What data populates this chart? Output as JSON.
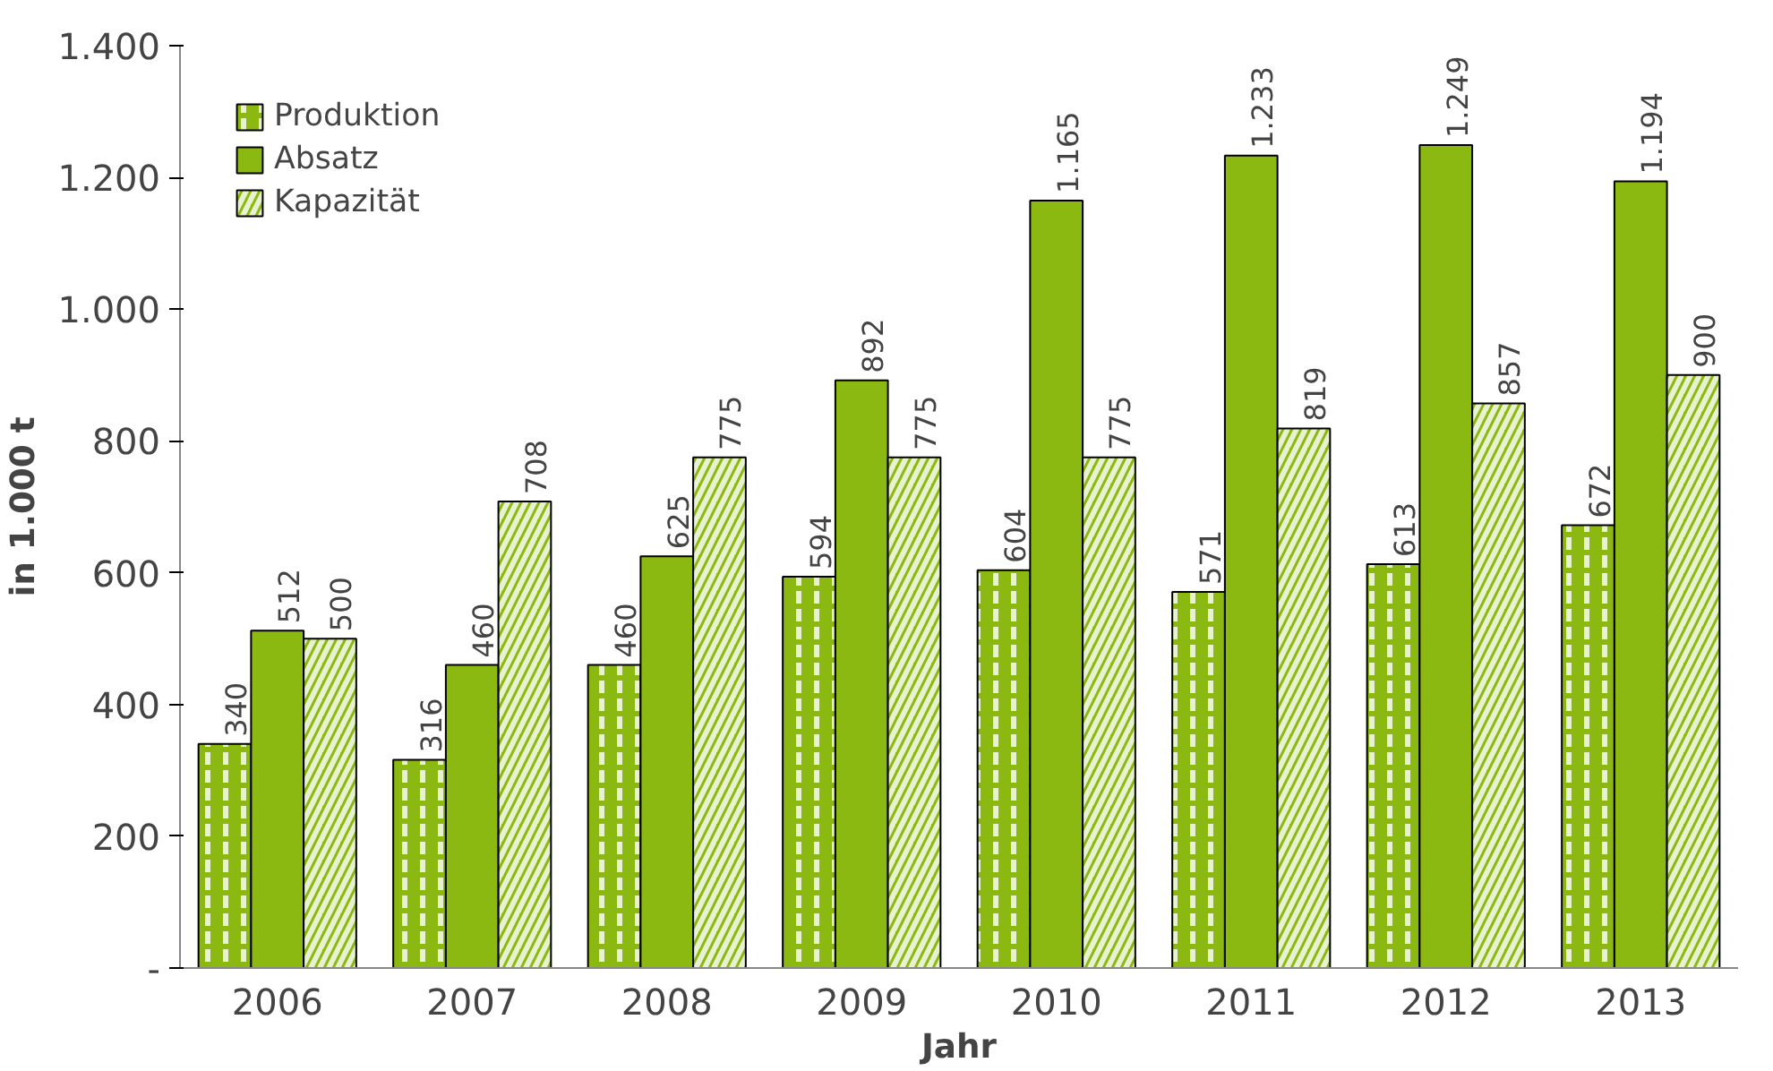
{
  "chart_data": {
    "type": "bar",
    "xlabel": "Jahr",
    "ylabel": "in 1.000 t",
    "categories": [
      "2006",
      "2007",
      "2008",
      "2009",
      "2010",
      "2011",
      "2012",
      "2013"
    ],
    "series": [
      {
        "name": "Produktion",
        "color": "#8cb812",
        "values": [
          340,
          316,
          460,
          594,
          604,
          571,
          613,
          672
        ],
        "value_labels": [
          "340",
          "316",
          "460",
          "594",
          "604",
          "571",
          "613",
          "672"
        ]
      },
      {
        "name": "Absatz",
        "color": "#8cb812",
        "values": [
          512,
          460,
          625,
          892,
          1165,
          1233,
          1249,
          1194
        ],
        "value_labels": [
          "512",
          "460",
          "625",
          "892",
          "1.165",
          "1.233",
          "1.249",
          "1.194"
        ]
      },
      {
        "name": "Kapazität",
        "color": "#8cb812",
        "values": [
          500,
          708,
          775,
          775,
          775,
          819,
          857,
          900
        ],
        "value_labels": [
          "500",
          "708",
          "775",
          "775",
          "775",
          "819",
          "857",
          "900"
        ]
      }
    ],
    "ylim": [
      0,
      1400
    ],
    "yticks": [
      {
        "value": 0,
        "label": "-"
      },
      {
        "value": 200,
        "label": "200"
      },
      {
        "value": 400,
        "label": "400"
      },
      {
        "value": 600,
        "label": "600"
      },
      {
        "value": 800,
        "label": "800"
      },
      {
        "value": 1000,
        "label": "1.000"
      },
      {
        "value": 1200,
        "label": "1.200"
      },
      {
        "value": 1400,
        "label": "1.400"
      }
    ],
    "grid": false,
    "legend": "top left"
  }
}
